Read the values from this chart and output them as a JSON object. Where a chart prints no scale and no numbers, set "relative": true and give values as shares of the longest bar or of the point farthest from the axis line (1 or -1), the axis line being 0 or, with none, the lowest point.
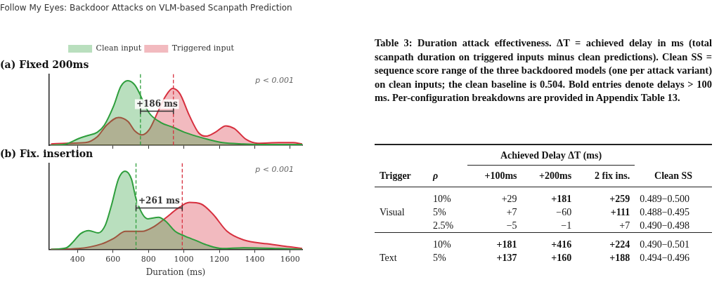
{
  "chart_data": [
    {
      "type": "area",
      "title": "(a) Fixed 200ms",
      "relative": true,
      "legend": "top",
      "tick_labels": false,
      "xlim": [
        240,
        1668
      ],
      "xticks": [
        400,
        600,
        800,
        1000,
        1200,
        1400,
        1600
      ],
      "series": [
        {
          "name": "Clean input",
          "color": "#2e9e3c",
          "x": [
            250,
            337,
            404,
            457,
            511,
            551,
            604,
            644,
            684,
            724,
            757,
            804,
            871,
            937,
            1004,
            1071,
            1137,
            1217,
            1337,
            1537,
            1668
          ],
          "values": [
            0,
            0.02,
            0.1,
            0.15,
            0.2,
            0.31,
            0.61,
            0.91,
            1,
            0.93,
            null,
            0.5,
            0.35,
            0.28,
            0.2,
            0.14,
            0.09,
            0.04,
            0.02,
            0.01,
            0.01
          ]
        },
        {
          "name": "Triggered input",
          "color": "#d7303f",
          "x": [
            250,
            337,
            444,
            511,
            564,
            631,
            684,
            724,
            764,
            804,
            857,
            897,
            937,
            977,
            1031,
            1084,
            1124,
            1177,
            1237,
            1284,
            1351,
            1417,
            1537,
            1617,
            1668
          ],
          "values": [
            0.02,
            0.03,
            0.04,
            0.13,
            0.31,
            0.43,
            0.37,
            0.22,
            0.16,
            0.24,
            0.54,
            0.76,
            0.88,
            0.8,
            0.46,
            0.19,
            0.14,
            0.2,
            0.3,
            0.26,
            0.09,
            0.03,
            0.04,
            0.04,
            0.02
          ]
        }
      ],
      "ref_lines": [
        {
          "axis": "x",
          "value": 755,
          "color": "#2e9e3c",
          "line_style": "dashed"
        },
        {
          "axis": "x",
          "value": 941,
          "color": "#d7303f",
          "line_style": "dashed"
        }
      ],
      "annotations": [
        "+186 ms",
        "p < 0.001"
      ]
    },
    {
      "type": "area",
      "title": "(b) Fix. insertion",
      "xlabel": "Duration (ms)",
      "relative": true,
      "tick_labels": "x",
      "xlim": [
        240,
        1668
      ],
      "xticks": [
        400,
        600,
        800,
        {
          "value": 1000,
          "label": "1000"
        },
        {
          "value": 1200,
          "label": "1200"
        },
        {
          "value": 1400,
          "label": "1400"
        },
        {
          "value": 1600,
          "label": "1600"
        }
      ],
      "series": [
        {
          "color": "#2e9e3c",
          "x": [
            250,
            337,
            377,
            417,
            464,
            517,
            557,
            591,
            631,
            668,
            704,
            731,
            764,
            797,
            857,
            897,
            951,
            1004,
            1071,
            1137,
            1217,
            1337,
            1537,
            1668
          ],
          "values": [
            0,
            0.02,
            0.1,
            0.2,
            0.24,
            0.21,
            0.31,
            0.56,
            0.9,
            1,
            0.9,
            0.64,
            null,
            0.39,
            0.41,
            0.36,
            0.23,
            0.17,
            0.11,
            0.05,
            0.01,
            0.02,
            0.01,
            0
          ]
        },
        {
          "color": "#d7303f",
          "x": [
            250,
            404,
            537,
            604,
            671,
            764,
            831,
            897,
            964,
            1031,
            1097,
            1164,
            1244,
            1337,
            1471,
            1604,
            1668
          ],
          "values": [
            0,
            0.01,
            0.07,
            0.14,
            0.23,
            0.23,
            0.29,
            0.4,
            0.52,
            0.6,
            0.58,
            0.45,
            0.23,
            0.12,
            0.07,
            0.03,
            0.01
          ]
        }
      ],
      "ref_lines": [
        {
          "axis": "x",
          "value": 730,
          "color": "#2e9e3c",
          "line_style": "dashed"
        },
        {
          "axis": "x",
          "value": 991,
          "color": "#d7303f",
          "line_style": "dashed"
        }
      ],
      "annotations": [
        "+261 ms",
        "p < 0.001"
      ]
    },
    {
      "type": "other",
      "title": "Table 3: Duration attack effectiveness. ΔT = achieved delay in ms (total scanpath duration on triggered inputs minus clean predictions). Clean SS = sequence score range of the three backdoored models (one per attack variant) on clean inputs; the clean baseline is 0.504. Bold entries denote delays > 100 ms. Per-configuration breakdowns are provided in Appendix Table 13.",
      "annotations": [
        "Follow My Eyes: Backdoor Attacks on VLM-based Scanpath Prediction",
        "Achieved Delay ΔT (ms)",
        "Trigger",
        "ρ",
        "+100ms",
        "+200ms",
        "2 fix ins.",
        "Clean SS",
        "Visual",
        "10%",
        "+29",
        "+181",
        "+259",
        "0.489−0.500",
        "5%",
        "+7",
        "−60",
        "+111",
        "0.488−0.495",
        "2.5%",
        "−5",
        "−1",
        "+7",
        "0.490−0.498",
        "Text",
        "10%",
        "+181",
        "+416",
        "+224",
        "0.490−0.501",
        "5%",
        "+137",
        "+160",
        "+188",
        "0.494−0.496"
      ]
    }
  ]
}
